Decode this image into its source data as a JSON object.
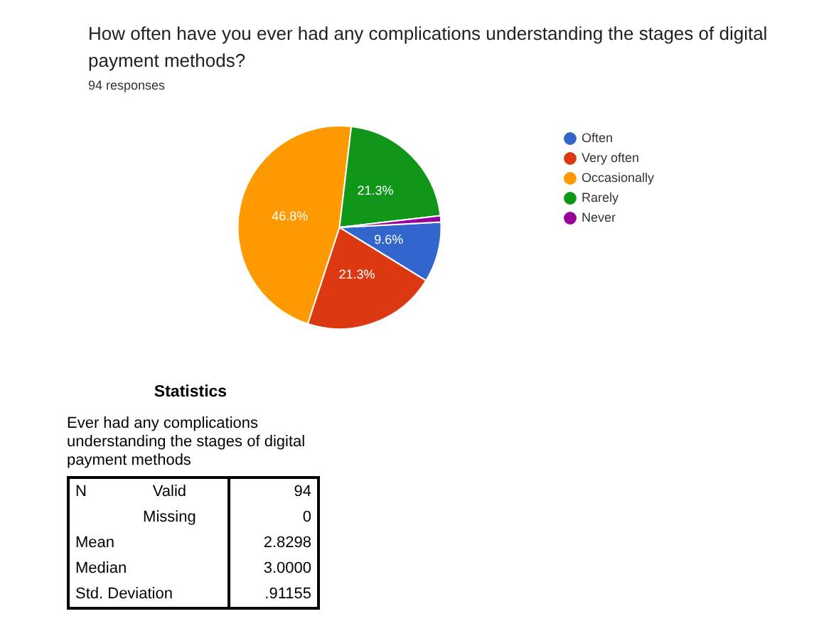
{
  "chart_data": {
    "type": "pie",
    "title": "How often have you ever had any complications understanding the stages of digital payment methods?",
    "subtitle": "94 responses",
    "categories": [
      "Often",
      "Very often",
      "Occasionally",
      "Rarely",
      "Never"
    ],
    "values": [
      9.6,
      21.3,
      46.8,
      21.3,
      1.0
    ],
    "colors": [
      "#3366cc",
      "#dc3912",
      "#ff9900",
      "#109618",
      "#990099"
    ],
    "value_labels": [
      "9.6%",
      "21.3%",
      "46.8%",
      "21.3%",
      null
    ],
    "legend": "right",
    "annotations": [
      "Statistics",
      "Ever had any complications understanding the stages of digital payment methods",
      "N",
      "Valid",
      "94",
      "Missing",
      "0",
      "Mean",
      "2.8298",
      "Median",
      "3.0000",
      "Std. Deviation",
      ".91155"
    ]
  }
}
